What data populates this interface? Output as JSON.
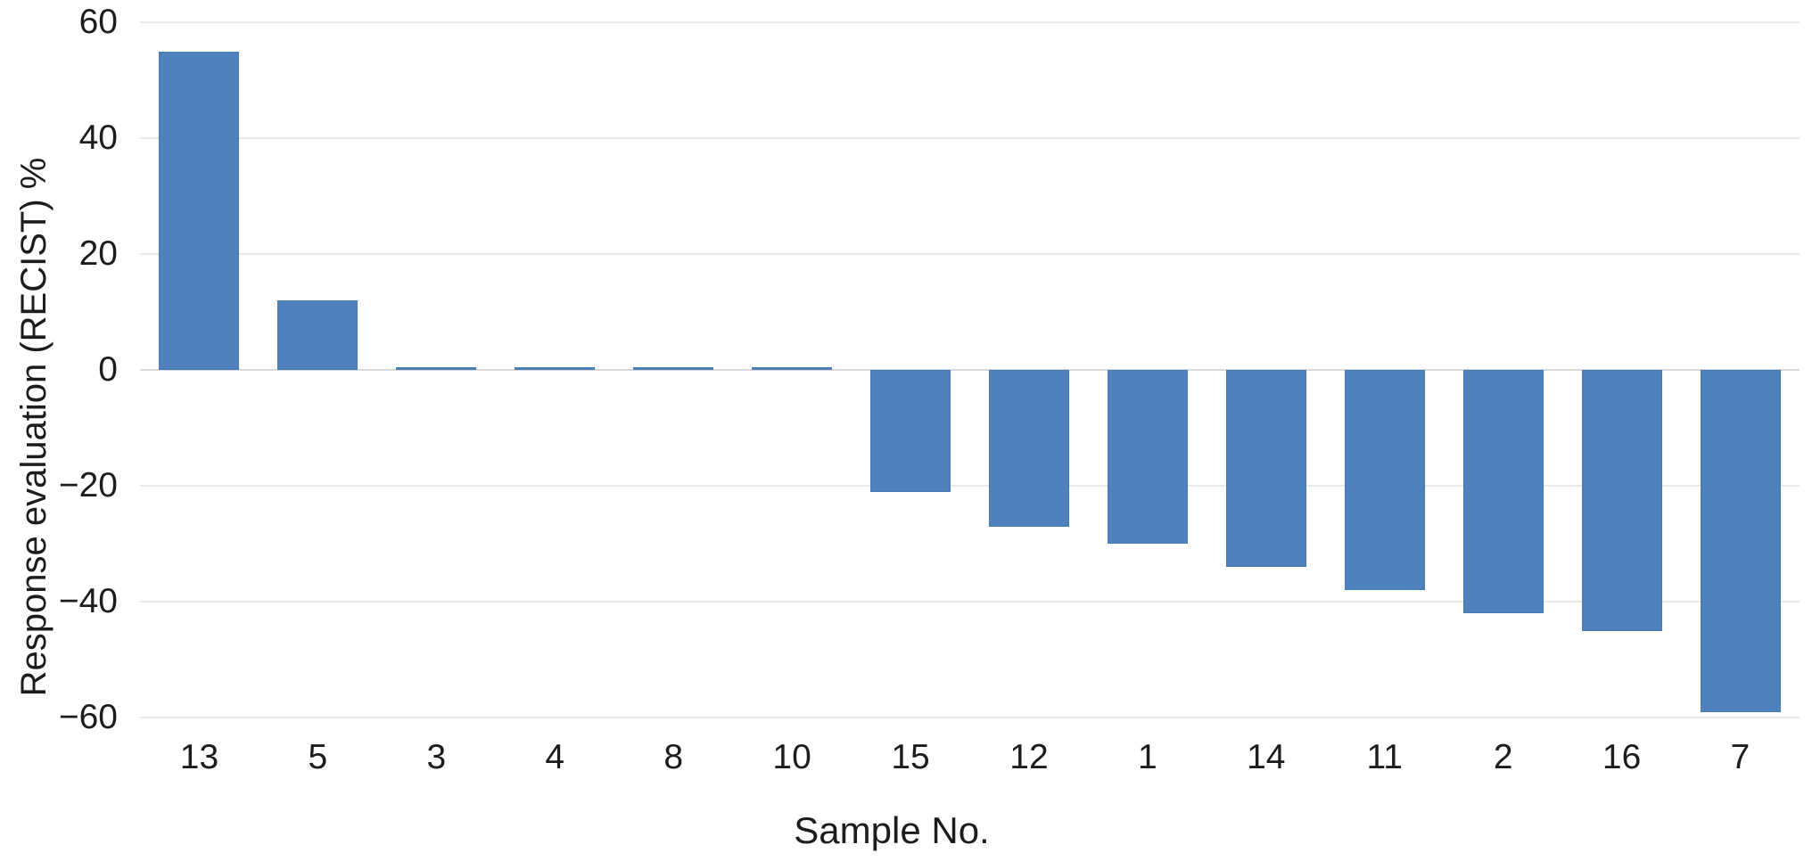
{
  "figure": {
    "background": "#ffffff"
  },
  "chart_data": {
    "type": "bar",
    "title": "",
    "xlabel": "Sample No.",
    "ylabel": "Response evaluation (RECIST) %",
    "categories": [
      "13",
      "5",
      "3",
      "4",
      "8",
      "10",
      "15",
      "12",
      "1",
      "14",
      "11",
      "2",
      "16",
      "7"
    ],
    "values": [
      55,
      12,
      0.5,
      0.5,
      0.5,
      0.5,
      -21,
      -27,
      -30,
      -34,
      -38,
      -42,
      -45,
      -59
    ],
    "ylim": [
      -60,
      60
    ],
    "yticks": [
      60,
      40,
      20,
      0,
      -20,
      -40,
      -60
    ],
    "ytick_labels": [
      "60",
      "40",
      "20",
      "0",
      "−20",
      "−40",
      "−60"
    ],
    "grid": "horizontal-only",
    "legend": "none",
    "colors": {
      "bar": "#4f81bd",
      "bar_edge": "#4a7ab2",
      "gridline": "#e8e8e8",
      "zero_line": "#d9d9d9",
      "text": "#1c1c1c"
    }
  }
}
